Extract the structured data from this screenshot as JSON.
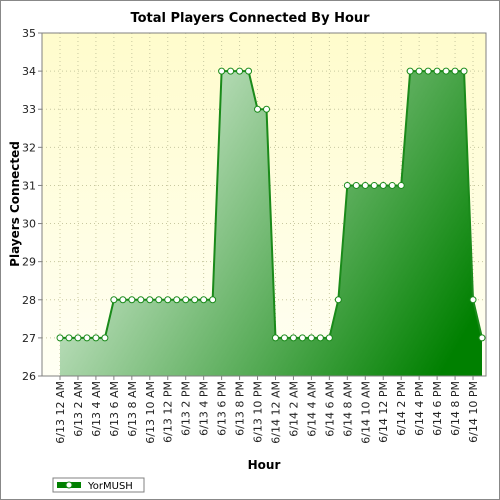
{
  "chart_data": {
    "type": "area",
    "title": "Total Players Connected By Hour",
    "xlabel": "Hour",
    "ylabel": "Players Connected",
    "ylim": [
      26,
      35
    ],
    "yticks": [
      26,
      27,
      28,
      29,
      30,
      31,
      32,
      33,
      34,
      35
    ],
    "grid": true,
    "legend_position": "bottom-left",
    "x_tick_labels": [
      "6/13 12 AM",
      "6/13 2 AM",
      "6/13 4 AM",
      "6/13 6 AM",
      "6/13 8 AM",
      "6/13 10 AM",
      "6/13 12 PM",
      "6/13 2 PM",
      "6/13 4 PM",
      "6/13 6 PM",
      "6/13 8 PM",
      "6/13 10 PM",
      "6/14 12 AM",
      "6/14 2 AM",
      "6/14 4 AM",
      "6/14 6 AM",
      "6/14 8 AM",
      "6/14 10 AM",
      "6/14 12 PM",
      "6/14 2 PM",
      "6/14 4 PM",
      "6/14 6 PM",
      "6/14 8 PM",
      "6/14 10 PM"
    ],
    "series": [
      {
        "name": "YorMUSH",
        "values": [
          27,
          27,
          27,
          27,
          27,
          27,
          28,
          28,
          28,
          28,
          28,
          28,
          28,
          28,
          28,
          28,
          28,
          28,
          34,
          34,
          34,
          34,
          33,
          33,
          27,
          27,
          27,
          27,
          27,
          27,
          27,
          28,
          31,
          31,
          31,
          31,
          31,
          31,
          31,
          34,
          34,
          34,
          34,
          34,
          34,
          34,
          28,
          27
        ]
      }
    ],
    "colors": {
      "plot_bg_top": "#fffccc",
      "plot_bg_bottom": "#fffff4",
      "line": "#1a8a1a",
      "fill_light": "#e6f3e6",
      "fill_dark": "#008000",
      "grid": "#c8c8a0"
    }
  }
}
